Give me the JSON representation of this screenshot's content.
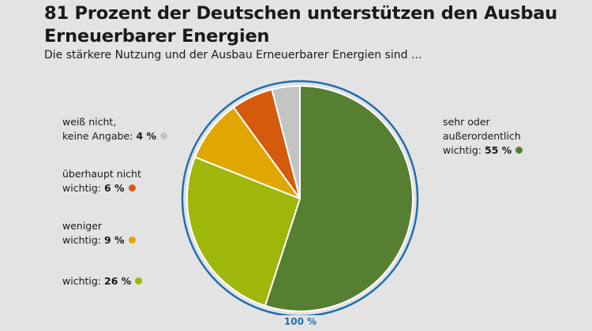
{
  "title": "81 Prozent der Deutschen unterstützen den Ausbau Erneuerbarer Energien",
  "subtitle": "Die stärkere Nutzung und der Ausbau Erneuerbarer Energien sind ...",
  "total_label": "100 %",
  "chart_data": {
    "type": "pie",
    "slices": [
      {
        "key": "sehr",
        "line1": "sehr oder",
        "line2": "außerordentlich",
        "line3": "wichtig:",
        "pct": "55 %",
        "value": 55,
        "color": "#567f32"
      },
      {
        "key": "wichtig",
        "line1": "wichtig:",
        "pct": "26 %",
        "value": 26,
        "color": "#9fb60a"
      },
      {
        "key": "weniger",
        "line1": "weniger",
        "line2": "wichtig:",
        "pct": "9 %",
        "value": 9,
        "color": "#e0a700"
      },
      {
        "key": "ueberhaupt",
        "line1": "überhaupt nicht",
        "line2": "wichtig:",
        "pct": "6 %",
        "value": 6,
        "color": "#d45a0c"
      },
      {
        "key": "weiss",
        "line1": "weiß nicht,",
        "line2": "keine Angabe:",
        "pct": "4 %",
        "value": 4,
        "color": "#c4c4c4"
      }
    ],
    "ring_color": "#1f6fae"
  }
}
